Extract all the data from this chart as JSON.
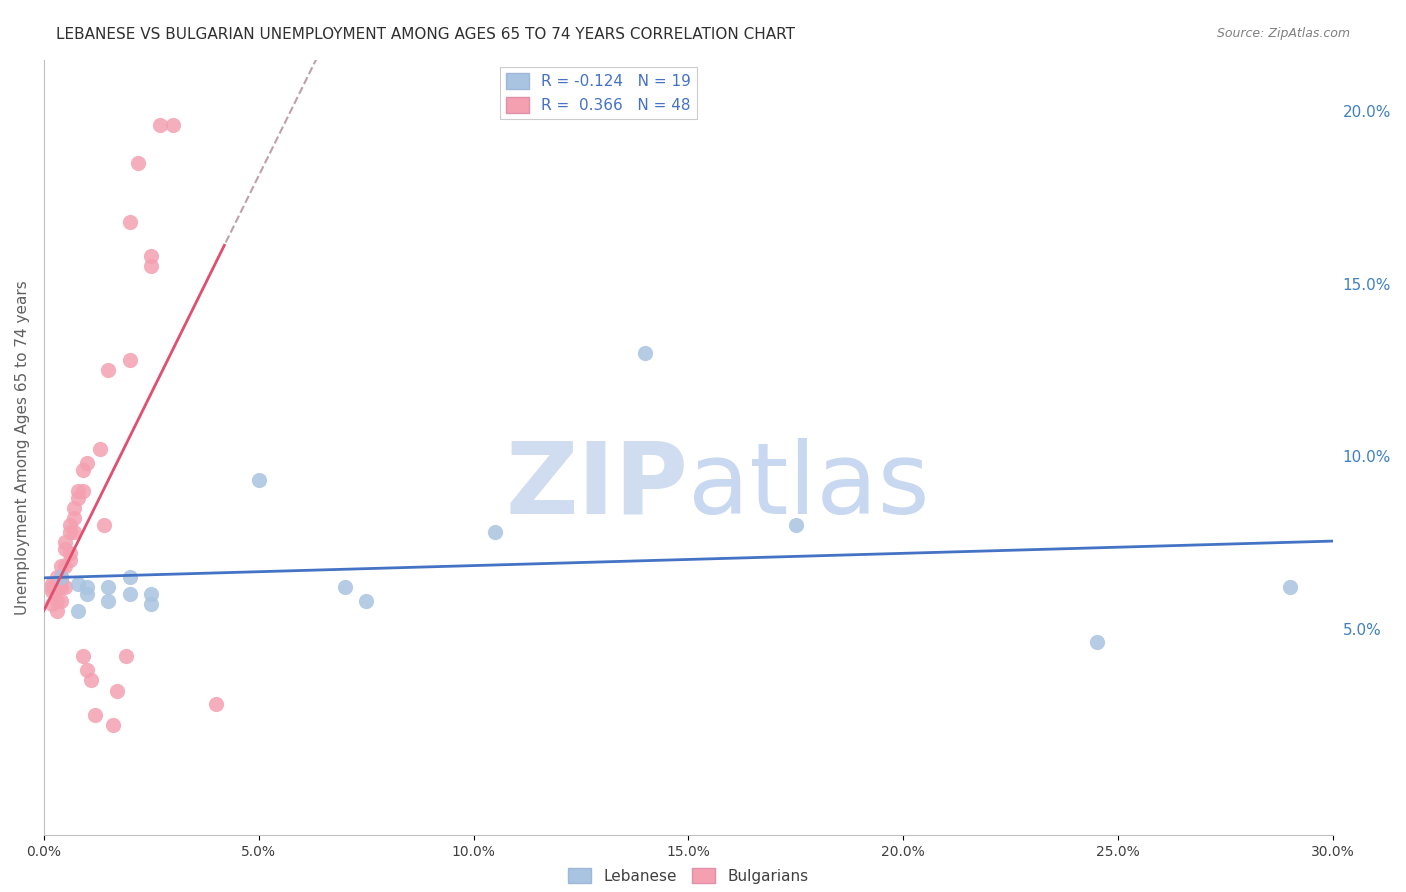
{
  "title": "LEBANESE VS BULGARIAN UNEMPLOYMENT AMONG AGES 65 TO 74 YEARS CORRELATION CHART",
  "source": "Source: ZipAtlas.com",
  "ylabel": "Unemployment Among Ages 65 to 74 years",
  "xlim": [
    0.0,
    0.3
  ],
  "ylim": [
    -0.01,
    0.215
  ],
  "xticks": [
    0.0,
    0.05,
    0.1,
    0.15,
    0.2,
    0.25,
    0.3
  ],
  "yticks": [
    0.05,
    0.1,
    0.15,
    0.2
  ],
  "ytick_labels": [
    "5.0%",
    "10.0%",
    "15.0%",
    "20.0%"
  ],
  "xtick_labels": [
    "0.0%",
    "5.0%",
    "10.0%",
    "15.0%",
    "20.0%",
    "25.0%",
    "30.0%"
  ],
  "legend_R_blue": "-0.124",
  "legend_N_blue": "19",
  "legend_R_pink": "0.366",
  "legend_N_pink": "48",
  "blue_color": "#a8c4e0",
  "pink_color": "#f4a0b0",
  "blue_line_color": "#4472c4",
  "pink_line_color": "#e05070",
  "dashed_line_color": "#c0a0a8",
  "watermark_color": "#d0ddf0",
  "background_color": "#ffffff",
  "grid_color": "#d0d0d0",
  "title_color": "#303030",
  "axis_label_color": "#606060",
  "right_axis_color": "#4080c0",
  "legend_text_color": "#4472c4",
  "blue_x": [
    0.004,
    0.008,
    0.008,
    0.01,
    0.01,
    0.015,
    0.015,
    0.02,
    0.02,
    0.025,
    0.025,
    0.05,
    0.07,
    0.075,
    0.105,
    0.14,
    0.175,
    0.245,
    0.29
  ],
  "blue_y": [
    0.065,
    0.063,
    0.055,
    0.062,
    0.06,
    0.062,
    0.058,
    0.065,
    0.06,
    0.06,
    0.057,
    0.093,
    0.062,
    0.058,
    0.078,
    0.13,
    0.08,
    0.046,
    0.062
  ],
  "pink_x": [
    0.002,
    0.002,
    0.002,
    0.002,
    0.003,
    0.003,
    0.003,
    0.003,
    0.003,
    0.004,
    0.004,
    0.004,
    0.004,
    0.004,
    0.005,
    0.005,
    0.005,
    0.005,
    0.006,
    0.006,
    0.006,
    0.006,
    0.007,
    0.007,
    0.007,
    0.008,
    0.008,
    0.009,
    0.009,
    0.009,
    0.01,
    0.01,
    0.011,
    0.012,
    0.013,
    0.014,
    0.015,
    0.016,
    0.017,
    0.019,
    0.02,
    0.02,
    0.022,
    0.025,
    0.025,
    0.027,
    0.03,
    0.04
  ],
  "pink_y": [
    0.063,
    0.062,
    0.061,
    0.057,
    0.065,
    0.063,
    0.062,
    0.058,
    0.055,
    0.068,
    0.065,
    0.064,
    0.062,
    0.058,
    0.075,
    0.073,
    0.068,
    0.062,
    0.08,
    0.078,
    0.072,
    0.07,
    0.085,
    0.082,
    0.078,
    0.09,
    0.088,
    0.096,
    0.09,
    0.042,
    0.098,
    0.038,
    0.035,
    0.025,
    0.102,
    0.08,
    0.125,
    0.022,
    0.032,
    0.042,
    0.168,
    0.128,
    0.185,
    0.155,
    0.158,
    0.196,
    0.196,
    0.028
  ]
}
